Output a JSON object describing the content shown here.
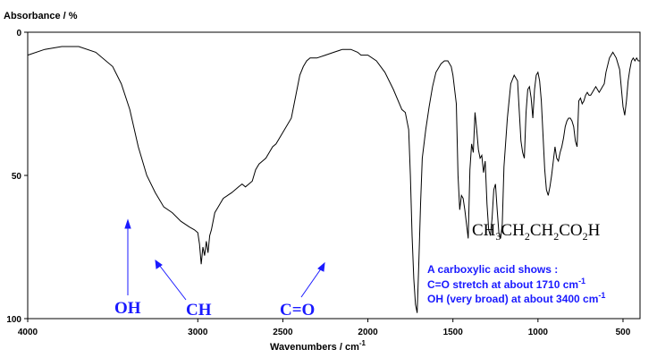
{
  "chart_data": {
    "type": "line",
    "title": "",
    "ylabel": "Absorbance / %",
    "xlabel": "Wavenumbers / cm",
    "xlabel_superscript": "-1",
    "xlim": [
      4000,
      400
    ],
    "ylim": [
      0,
      100
    ],
    "x_ticks": [
      "4000",
      "3000",
      "2500",
      "2000",
      "1500",
      "1000",
      "500"
    ],
    "x_tick_values": [
      4000,
      3000,
      2500,
      2000,
      1500,
      1000,
      500
    ],
    "y_ticks": [
      "0",
      "50",
      "100"
    ],
    "y_tick_values": [
      0,
      50,
      100
    ],
    "grid": false,
    "series": [
      {
        "x": [
          4000,
          3900,
          3800,
          3700,
          3600,
          3500,
          3450,
          3400,
          3350,
          3300,
          3250,
          3200,
          3150,
          3100,
          3050,
          3020,
          3000,
          2990,
          2980,
          2970,
          2960,
          2950,
          2940,
          2930,
          2920,
          2900,
          2880,
          2870,
          2850,
          2800,
          2760,
          2740,
          2720,
          2700,
          2680,
          2660,
          2640,
          2620,
          2600,
          2580,
          2560,
          2540,
          2500,
          2450,
          2400,
          2380,
          2360,
          2340,
          2300,
          2250,
          2200,
          2150,
          2100,
          2060,
          2040,
          2000,
          1950,
          1900,
          1850,
          1800,
          1780,
          1760,
          1750,
          1740,
          1730,
          1720,
          1710,
          1700,
          1690,
          1680,
          1660,
          1640,
          1620,
          1600,
          1570,
          1550,
          1530,
          1510,
          1500,
          1480,
          1470,
          1460,
          1450,
          1440,
          1430,
          1420,
          1410,
          1400,
          1390,
          1380,
          1370,
          1360,
          1350,
          1340,
          1330,
          1320,
          1310,
          1300,
          1290,
          1280,
          1270,
          1260,
          1250,
          1240,
          1230,
          1220,
          1210,
          1200,
          1180,
          1160,
          1140,
          1120,
          1100,
          1090,
          1080,
          1070,
          1060,
          1050,
          1040,
          1030,
          1020,
          1010,
          1000,
          990,
          980,
          970,
          960,
          950,
          940,
          930,
          920,
          910,
          900,
          890,
          880,
          870,
          860,
          850,
          840,
          830,
          820,
          810,
          800,
          790,
          780,
          770,
          760,
          750,
          740,
          730,
          720,
          710,
          700,
          690,
          680,
          670,
          660,
          650,
          640,
          630,
          620,
          610,
          600,
          580,
          560,
          540,
          520,
          500,
          490,
          480,
          470,
          460,
          450,
          440,
          430,
          420,
          410,
          400
        ],
        "y": [
          8,
          6,
          5,
          5,
          7,
          12,
          18,
          27,
          40,
          50,
          56,
          61,
          63,
          66,
          68,
          69,
          70,
          74,
          81,
          75,
          78,
          73,
          77,
          71,
          69,
          63,
          61,
          60,
          58,
          56,
          54,
          53,
          54,
          53,
          52,
          48,
          46,
          45,
          44,
          42,
          40,
          39,
          35,
          30,
          15,
          12,
          10,
          9,
          9,
          8,
          7,
          6,
          6,
          7,
          8,
          8,
          10,
          14,
          20,
          27,
          28,
          34,
          50,
          71,
          86,
          95,
          98,
          80,
          60,
          44,
          34,
          26,
          19,
          14,
          11,
          10,
          10,
          12,
          15,
          25,
          50,
          62,
          57,
          58,
          62,
          67,
          72,
          48,
          39,
          42,
          28,
          34,
          41,
          44,
          43,
          49,
          45,
          60,
          69,
          71,
          65,
          55,
          53,
          62,
          70,
          72,
          67,
          47,
          30,
          18,
          15,
          17,
          38,
          42,
          44,
          28,
          20,
          19,
          23,
          30,
          20,
          15,
          14,
          17,
          24,
          36,
          48,
          55,
          57,
          54,
          50,
          45,
          40,
          44,
          45,
          42,
          40,
          37,
          33,
          31,
          30,
          30,
          31,
          33,
          38,
          40,
          24,
          23,
          25,
          24,
          22,
          21,
          22,
          22,
          21,
          20,
          19,
          20,
          21,
          20,
          19,
          18,
          14,
          9,
          7,
          9,
          13,
          26,
          29,
          24,
          17,
          13,
          10,
          9,
          10,
          9,
          10,
          10
        ]
      }
    ],
    "annotations": {
      "oh": "OH",
      "ch": "CH",
      "co": "C=O",
      "formula_parts": [
        "CH",
        "3",
        "CH",
        "2",
        "CH",
        "2",
        "CO",
        "2",
        "H"
      ],
      "note_line1": "A carboxylic acid shows :",
      "note_line2": "C=O stretch at about 1710 cm",
      "note_line2_sup": "-1",
      "note_line3": "OH (very broad) at about 3400 cm",
      "note_line3_sup": "-1"
    }
  }
}
